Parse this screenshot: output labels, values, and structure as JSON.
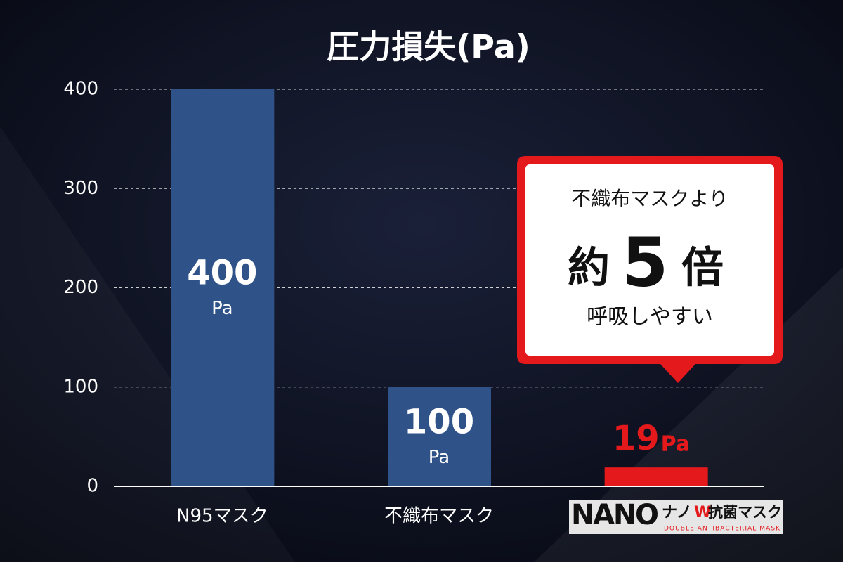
{
  "chart_data": {
    "type": "bar",
    "title": "圧力損失(Pa)",
    "categories": [
      "N95マスク",
      "不織布マスク",
      null
    ],
    "values": [
      400,
      100,
      19
    ],
    "colors": [
      "#2f5289",
      "#2f5289",
      "#e3191c"
    ],
    "value_unit": "Pa",
    "ylim": [
      0,
      400
    ],
    "yticks": [
      0,
      100,
      200,
      300,
      400
    ],
    "grid": true,
    "logo": {
      "main": "NANO",
      "kana": "ナノ",
      "w": "W",
      "name": "抗菌マスク",
      "sub": "DOUBLE ANTIBACTERIAL MASK"
    },
    "callout": {
      "line1": "不織布マスクより",
      "prefix": "約",
      "number": 5,
      "suffix": "倍",
      "line3": "呼吸しやすい"
    }
  }
}
